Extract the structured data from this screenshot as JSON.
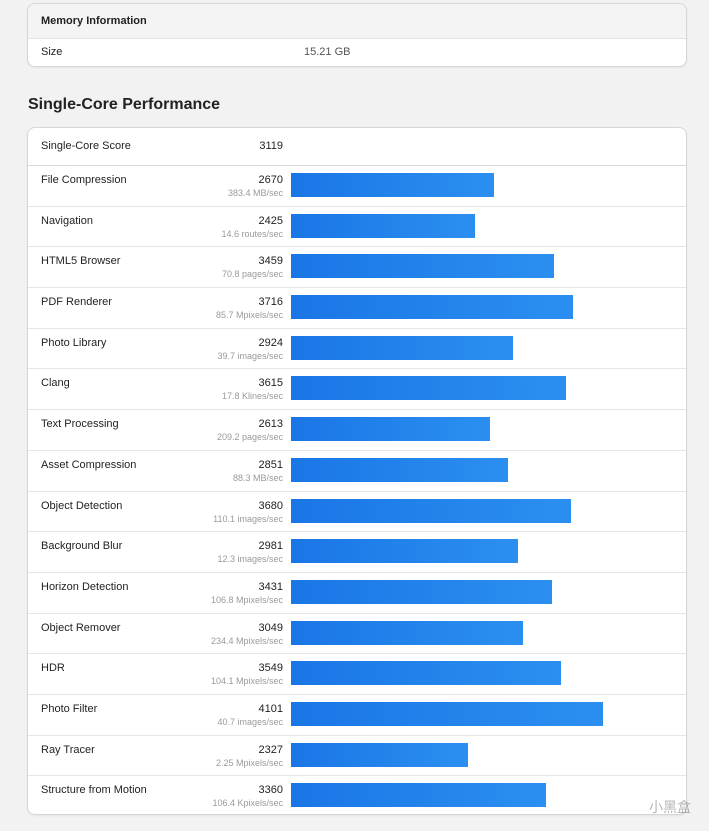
{
  "memory": {
    "header": "Memory Information",
    "size_label": "Size",
    "size_value": "15.21 GB"
  },
  "single_core": {
    "title": "Single-Core Performance",
    "score_label": "Single-Core Score",
    "score_value": "3119",
    "bar_scale_max": 5000,
    "benchmarks": [
      {
        "name": "File Compression",
        "score": 2670,
        "rate": "383.4 MB/sec"
      },
      {
        "name": "Navigation",
        "score": 2425,
        "rate": "14.6 routes/sec"
      },
      {
        "name": "HTML5 Browser",
        "score": 3459,
        "rate": "70.8 pages/sec"
      },
      {
        "name": "PDF Renderer",
        "score": 3716,
        "rate": "85.7 Mpixels/sec"
      },
      {
        "name": "Photo Library",
        "score": 2924,
        "rate": "39.7 images/sec"
      },
      {
        "name": "Clang",
        "score": 3615,
        "rate": "17.8 Klines/sec"
      },
      {
        "name": "Text Processing",
        "score": 2613,
        "rate": "209.2 pages/sec"
      },
      {
        "name": "Asset Compression",
        "score": 2851,
        "rate": "88.3 MB/sec"
      },
      {
        "name": "Object Detection",
        "score": 3680,
        "rate": "110.1 images/sec"
      },
      {
        "name": "Background Blur",
        "score": 2981,
        "rate": "12.3 images/sec"
      },
      {
        "name": "Horizon Detection",
        "score": 3431,
        "rate": "106.8 Mpixels/sec"
      },
      {
        "name": "Object Remover",
        "score": 3049,
        "rate": "234.4 Mpixels/sec"
      },
      {
        "name": "HDR",
        "score": 3549,
        "rate": "104.1 Mpixels/sec"
      },
      {
        "name": "Photo Filter",
        "score": 4101,
        "rate": "40.7 images/sec"
      },
      {
        "name": "Ray Tracer",
        "score": 2327,
        "rate": "2.25 Mpixels/sec"
      },
      {
        "name": "Structure from Motion",
        "score": 3360,
        "rate": "106.4 Kpixels/sec"
      }
    ]
  },
  "watermark": "小黑盒",
  "colors": {
    "bar_start": "#1a76e6",
    "bar_end": "#2b8ff0",
    "background": "#f2f2f2"
  }
}
